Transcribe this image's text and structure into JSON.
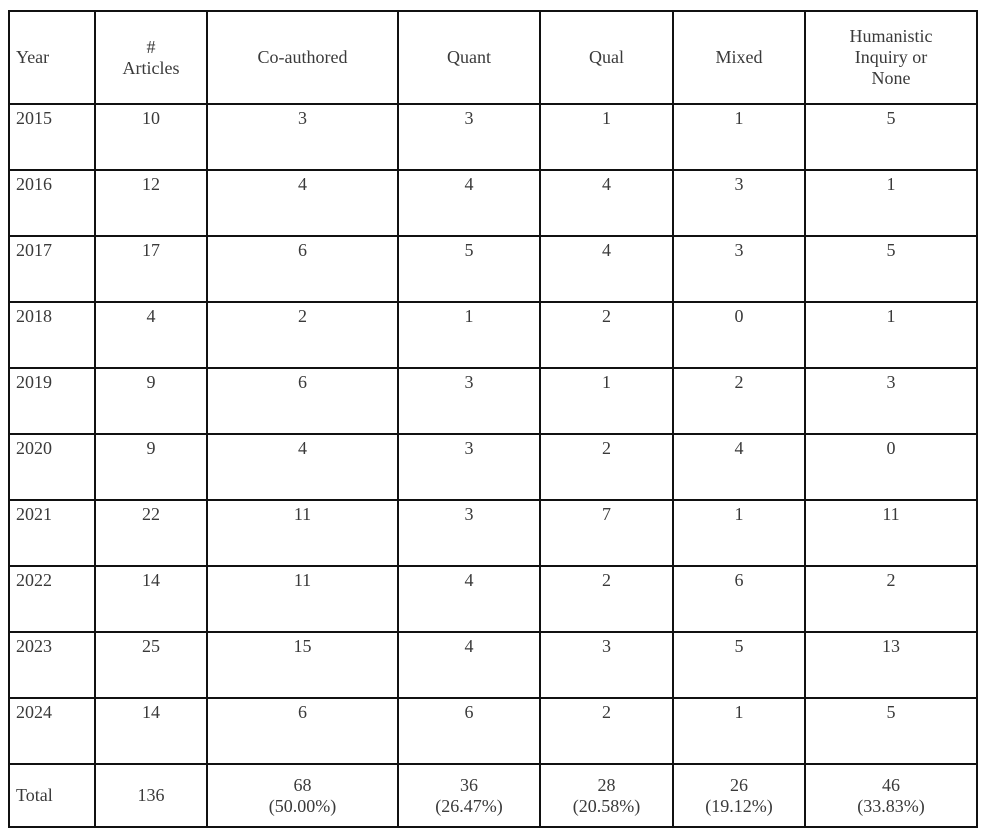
{
  "table": {
    "headers": [
      "Year",
      "# Articles",
      "Co-authored",
      "Quant",
      "Qual",
      "Mixed",
      "Humanistic Inquiry or None"
    ],
    "header_lines": [
      [
        "Year"
      ],
      [
        "#",
        "Articles"
      ],
      [
        "Co-authored"
      ],
      [
        "Quant"
      ],
      [
        "Qual"
      ],
      [
        "Mixed"
      ],
      [
        "Humanistic",
        "Inquiry or",
        "None"
      ]
    ],
    "rows": [
      [
        "2015",
        "10",
        "3",
        "3",
        "1",
        "1",
        "5"
      ],
      [
        "2016",
        "12",
        "4",
        "4",
        "4",
        "3",
        "1"
      ],
      [
        "2017",
        "17",
        "6",
        "5",
        "4",
        "3",
        "5"
      ],
      [
        "2018",
        "4",
        "2",
        "1",
        "2",
        "0",
        "1"
      ],
      [
        "2019",
        "9",
        "6",
        "3",
        "1",
        "2",
        "3"
      ],
      [
        "2020",
        "9",
        "4",
        "3",
        "2",
        "4",
        "0"
      ],
      [
        "2021",
        "22",
        "11",
        "3",
        "7",
        "1",
        "11"
      ],
      [
        "2022",
        "14",
        "11",
        "4",
        "2",
        "6",
        "2"
      ],
      [
        "2023",
        "25",
        "15",
        "4",
        "3",
        "5",
        "13"
      ],
      [
        "2024",
        "14",
        "6",
        "6",
        "2",
        "1",
        "5"
      ]
    ],
    "total": {
      "label": "Total",
      "articles": "136",
      "values": [
        {
          "count": "68",
          "pct": "(50.00%)"
        },
        {
          "count": "36",
          "pct": "(26.47%)"
        },
        {
          "count": "28",
          "pct": "(20.58%)"
        },
        {
          "count": "26",
          "pct": "(19.12%)"
        },
        {
          "count": "46",
          "pct": "(33.83%)"
        }
      ]
    }
  }
}
